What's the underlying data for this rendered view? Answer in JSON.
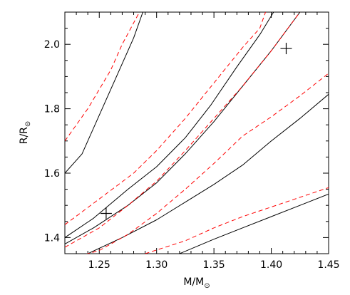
{
  "chart_data": {
    "type": "line",
    "xlabel": "M/M",
    "xlabel_subscript": "⊙",
    "ylabel": "R/R",
    "ylabel_subscript": "⊙",
    "xlim": [
      1.22,
      1.45
    ],
    "ylim": [
      1.35,
      2.1
    ],
    "x_ticks": [
      1.25,
      1.3,
      1.35,
      1.4,
      1.45
    ],
    "x_tick_labels": [
      "1.25",
      "1.30",
      "1.35",
      "1.40",
      "1.45"
    ],
    "y_ticks": [
      1.4,
      1.6,
      1.8,
      2.0
    ],
    "y_tick_labels": [
      "1.4",
      "1.6",
      "1.8",
      "2.0"
    ],
    "grid": false,
    "colors": {
      "solid": "#000000",
      "dashed": "#ff0000"
    },
    "series": [
      {
        "style": "solid",
        "points": [
          [
            1.22,
            1.6
          ],
          [
            1.235,
            1.66
          ],
          [
            1.25,
            1.78
          ],
          [
            1.265,
            1.9
          ],
          [
            1.28,
            2.02
          ],
          [
            1.288,
            2.1
          ]
        ]
      },
      {
        "style": "solid",
        "points": [
          [
            1.22,
            1.4
          ],
          [
            1.245,
            1.46
          ],
          [
            1.275,
            1.55
          ],
          [
            1.3,
            1.62
          ],
          [
            1.325,
            1.71
          ],
          [
            1.347,
            1.81
          ],
          [
            1.37,
            1.93
          ],
          [
            1.39,
            2.03
          ],
          [
            1.402,
            2.1
          ]
        ]
      },
      {
        "style": "solid",
        "points": [
          [
            1.22,
            1.38
          ],
          [
            1.245,
            1.43
          ],
          [
            1.275,
            1.5
          ],
          [
            1.3,
            1.57
          ],
          [
            1.325,
            1.66
          ],
          [
            1.35,
            1.76
          ],
          [
            1.375,
            1.87
          ],
          [
            1.4,
            1.98
          ],
          [
            1.425,
            2.1
          ]
        ]
      },
      {
        "style": "solid",
        "points": [
          [
            1.24,
            1.35
          ],
          [
            1.27,
            1.4
          ],
          [
            1.3,
            1.455
          ],
          [
            1.325,
            1.51
          ],
          [
            1.35,
            1.565
          ],
          [
            1.375,
            1.625
          ],
          [
            1.4,
            1.7
          ],
          [
            1.425,
            1.77
          ],
          [
            1.45,
            1.845
          ]
        ]
      },
      {
        "style": "solid",
        "points": [
          [
            1.32,
            1.35
          ],
          [
            1.35,
            1.395
          ],
          [
            1.375,
            1.43
          ],
          [
            1.4,
            1.465
          ],
          [
            1.425,
            1.5
          ],
          [
            1.45,
            1.535
          ]
        ]
      },
      {
        "style": "dashed",
        "points": [
          [
            1.22,
            1.7
          ],
          [
            1.24,
            1.8
          ],
          [
            1.26,
            1.92
          ],
          [
            1.27,
            2.0
          ],
          [
            1.285,
            2.1
          ]
        ]
      },
      {
        "style": "dashed",
        "points": [
          [
            1.22,
            1.44
          ],
          [
            1.25,
            1.52
          ],
          [
            1.28,
            1.6
          ],
          [
            1.3,
            1.67
          ],
          [
            1.325,
            1.77
          ],
          [
            1.35,
            1.88
          ],
          [
            1.375,
            1.99
          ],
          [
            1.39,
            2.05
          ],
          [
            1.395,
            2.1
          ]
        ]
      },
      {
        "style": "dashed",
        "points": [
          [
            1.22,
            1.37
          ],
          [
            1.25,
            1.43
          ],
          [
            1.275,
            1.5
          ],
          [
            1.3,
            1.575
          ],
          [
            1.325,
            1.67
          ],
          [
            1.35,
            1.77
          ],
          [
            1.375,
            1.87
          ],
          [
            1.4,
            1.98
          ],
          [
            1.425,
            2.1
          ]
        ]
      },
      {
        "style": "dashed",
        "points": [
          [
            1.22,
            1.33
          ],
          [
            1.25,
            1.36
          ],
          [
            1.275,
            1.41
          ],
          [
            1.3,
            1.475
          ],
          [
            1.325,
            1.55
          ],
          [
            1.35,
            1.63
          ],
          [
            1.375,
            1.715
          ],
          [
            1.4,
            1.775
          ],
          [
            1.425,
            1.84
          ],
          [
            1.45,
            1.91
          ]
        ]
      },
      {
        "style": "dashed",
        "points": [
          [
            1.29,
            1.35
          ],
          [
            1.325,
            1.39
          ],
          [
            1.35,
            1.43
          ],
          [
            1.375,
            1.465
          ],
          [
            1.4,
            1.495
          ],
          [
            1.425,
            1.525
          ],
          [
            1.45,
            1.555
          ]
        ]
      }
    ],
    "markers": [
      {
        "x": 1.256,
        "y": 1.475,
        "symbol": "plus"
      },
      {
        "x": 1.413,
        "y": 1.987,
        "symbol": "plus"
      }
    ]
  }
}
